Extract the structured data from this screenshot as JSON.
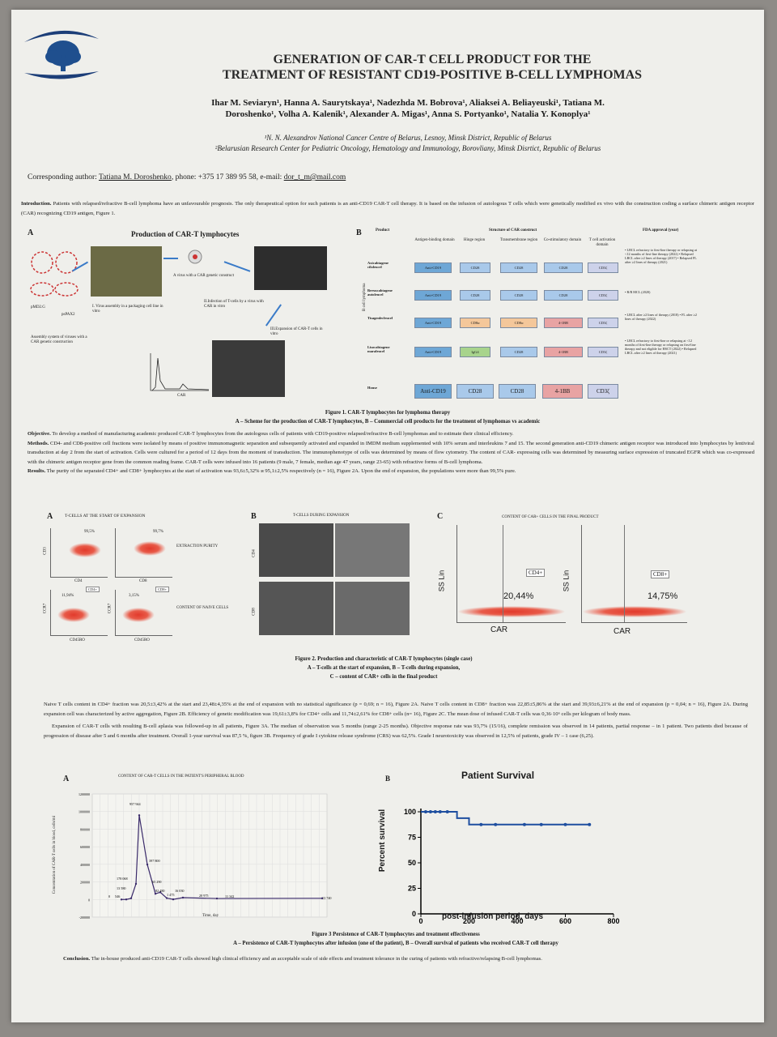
{
  "title_line1": "GENERATION OF CAR-T CELL PRODUCT FOR THE",
  "title_line2": "TREATMENT OF RESISTANT CD19-POSITIVE B-CELL LYMPHOMAS",
  "authors_line1": "Ihar M. Seviaryn¹, Hanna A. Saurytskaya¹, Nadezhda M. Bobrova¹, Aliaksei A. Beliayeuski¹, Tatiana M.",
  "authors_line2": "Doroshenko¹, Volha A. Kalenik¹, Alexander A. Migas¹, Anna S. Portyanko¹, Natalia Y. Konoplya¹",
  "affiliation1": "¹N. N. Alexandrov National Cancer Centre of Belarus, Lesnoy, Minsk District, Republic of Belarus",
  "affiliation2": "²Belarusian Research Center for Pediatric Oncology, Hematology and Immunology, Borovliany, Minsk Disrtict, Republic of Belarus",
  "corr_prefix": "Corresponding author:",
  "corr_name": "Tatiana M. Doroshenko",
  "corr_phone": ", phone: +375 17 389 95 58, e-mail:",
  "corr_email": "dor_t_m@mail.com",
  "intro_head": "Introduction.",
  "intro_text": "Patients with relapsed/refractive B-cell lymphoma have an unfavourable prognosis. The only therapeutical option for such patients is an anti-CD19 CAR-T cell therapy. It is based on the infusion of autologous T cells which were genetically modified ex vivo with the construction coding a surface chimeric antigen receptor (CAR) recognizing CD19 antigen, Figure 1.",
  "fig1": {
    "panel_a": "A",
    "panel_a_title": "Production of CAR-T lymphocytes",
    "panel_b": "B",
    "step1": "I. Virus assembly in a packaging cell line in vitro",
    "step2": "A virus with a CAR genetic construct",
    "step3": "II.Infection of T-cells by a virus with CAR in vitro",
    "step4": "III.Expansion of CAR-T cells in vitro",
    "step0": "Assembly system of viruses with a CAR genetic construction",
    "plasmid1": "pMD2.G",
    "plasmid2": "psPAX2",
    "hist_axis": "CAR",
    "b_header_product": "Product",
    "b_header_structure": "Structure of CAR construct",
    "b_header_fda": "FDA approval (year)",
    "b_cols": [
      "Antigen-binding domain",
      "Hinge region",
      "Transmembrane region",
      "Co-stimulatory domain",
      "T cell activation domain"
    ],
    "b_side_label": "B cell lymphoma",
    "products": [
      {
        "name": "Axicabtagene ciloleucel",
        "domains": [
          "Anti-CD19",
          "CD28",
          "CD28",
          "CD28",
          "CD3ζ"
        ],
        "fda": "• LBCL refractory to first-line therapy or relapsing at <12 months of first-line therapy (2022) • Relapsed LBCL after ≥2 lines of therapy (2017) • Relapsed FL after ≥2 lines of therapy (2021)"
      },
      {
        "name": "Brexucabtagene autoleucel",
        "domains": [
          "Anti-CD19",
          "CD28",
          "CD28",
          "CD28",
          "CD3ζ"
        ],
        "fda": "• R/R MCL (2020)"
      },
      {
        "name": "Tisagenlecleucel",
        "domains": [
          "Anti-CD19",
          "CD8α",
          "CD8α",
          "4-1BB",
          "CD3ζ"
        ],
        "fda": "• LBCL after ≥2 lines of therapy (2018) • FL after ≥2 lines of therapy (2022)"
      },
      {
        "name": "Lisocabtagene maraleucel",
        "domains": [
          "Anti-CD19",
          "IgG4",
          "CD28",
          "4-1BB",
          "CD3ζ"
        ],
        "fda": "• LBCL refractory to first-line or relapsing at <12 months of first-line therapy or relapsing on first-line therapy and not eligible for HSCT (2022) • Relapsed LBCL after ≥2 lines of therapy (2021)"
      },
      {
        "name": "House",
        "domains": [
          "Anti-CD19",
          "CD28",
          "CD28",
          "4-1BB",
          "CD3ζ"
        ],
        "fda": ""
      }
    ],
    "caption_title": "Figure 1. CAR-T lymphocytes for lymphoma therapy",
    "caption_sub": "A – Scheme for the production of CAR-T lymphocytes, B – Commercial cell products for the treatment of lymphomas vs academic"
  },
  "objective_head": "Objective.",
  "objective_text": "To develop a method of manufacturing academic produced CAR-T lymphocytes from the autologous cells of patients with CD19-positive relapsed/refractive B-cell lymphomas and to estimate their clinical efficiency.",
  "methods_head": "Methods.",
  "methods_text": "CD4- and CD8-positive cell fractions were isolated by means of positive immunomagnetic separation and subsequently activated and expanded in IMDM medium supplemented with 10% serum and interleukins 7 and 15. The second generation anti-CD19 chimeric antigen receptor was introduced into lymphocytes by lentiviral transduction at day 2 from the start of activation. Cells were cultured for a period of 12 days from the moment of transduction. The immunophenotype of cells was determined by means of flow cytometry. The content of CAR- expressing cells was determined by measuring surface expression of truncated EGFR which was co-expressed with the chimeric antigen receptor gene from the common reading frame. CAR-T cells were infused into 16 patients (9 male, 7 female, median age 47 years, range 23-65) with refractive forms of B-cell lymphoma.",
  "results_head": "Results.",
  "results_text": "The purity of the separated CD4+ and CD8+ lymphocytes at the start of activation was 93,6±5,32% и 95,1±2,5% respectively (n = 16), Figure 2A. Upon the end of expansion, the populations were more than 99,5% pure.",
  "fig2": {
    "a": "A",
    "a_title": "T-CELLS AT THE START OF EXPANSION",
    "b": "B",
    "b_title": "T-CELLS DURING EXPANSION",
    "c": "C",
    "c_title": "CONTENT OF CAR+ CELLS IN THE FINAL PRODUCT",
    "purity1": "99,5%",
    "purity2": "99,7%",
    "naive1": "11,94%",
    "naive2": "3,15%",
    "extraction_purity": "EXTRACTION PURITY",
    "content_naive": "CONTENT OF NAIVE CELLS",
    "cd3": "CD3",
    "cd4": "CD4",
    "cd8": "CD8",
    "ccr7": "CCR7",
    "cd45ro": "CD45RO",
    "gate_cd4": "CD4+",
    "gate_cd8": "CD8+",
    "ss_lin": "SS Lin",
    "car": "CAR",
    "car_cd4": "20,44%",
    "car_cd8": "14,75%",
    "caption1": "Figure 2. Production and characteristic of CAR-T lymphocytes (single case)",
    "caption2": "A – T-cells at the start of expansion, B – T-cells during expansion,",
    "caption3": "C – content of CAR+ cells in the final product"
  },
  "naive_text": "Naive T cells content in CD4+ fraction was 20,5±3,42% at the start and 23,48±4,35% at the end of expansion with no statistical significance (p = 0,69; n = 16), Figure 2A. Naive T cells content in CD8+ fraction was 22,85±5,86% at the start and 39,93±6,21% at the end of expansion (p = 0,04; n = 16), Figure 2A. During expansion cell was characterized by active aggregation, Figure 2B. Efficiency of genetic modification was 19,61±3,8% for CD4+ cells and 11,74±2,61% for CD8+ cells (n= 16), Figure 2C. The mean dose of infused CAR-T cells was 0,36·10⁶ cells per kilogram of body mass.",
  "expansion_text": "Expansion of CAR-T cells with resulting B-cell aplasia was followed-up in all patients, Figure 3A. The median of observation was 5 months (range 2-25 months). Objective response rate was 93,7% (15/16), complete remission was observed in 14 patients, partial response – in 1 patient. Two patients died because of progression of disease after 5 and 6 months after treatment. Overall 1-year survival was 87,5 %, figure 3B. Frequency of grade I cytokine release syndrome (CRS) was 62,5%. Grade I neurotoxicity was observed in 12,5% of patients, grade IV – 1 case (6,25).",
  "fig3": {
    "a": "A",
    "a_title": "CONTENT OF CAR-T CELLS IN THE PATIENT'S PERIPHERAL BLOOD",
    "a_ylabel": "Concentration of CAR-T cells in blood, cells/ml",
    "a_xlabel": "Time, day",
    "a_yticks": [
      "1200000",
      "1000000",
      "800000",
      "600000",
      "400000",
      "200000",
      "0",
      "-200000"
    ],
    "a_labels": [
      "957 944",
      "397 800",
      "178 068",
      "13 580",
      "0",
      "546",
      "65 290",
      "82 480",
      "16 030",
      "1 475",
      "20 975",
      "11 342",
      "13 740"
    ],
    "b": "B",
    "b_title": "Patient Survival",
    "b_ylabel": "Percent survival",
    "b_xlabel": "post-infusion period, days",
    "caption1": "Figure 3 Persistence of CAR-T lymphocytes and treatment effectiveness",
    "caption2": "A – Persistence of CAR-T lymphocytes after infusion (one of the patient), B – Overall survival of patients who received CAR-T cell therapy"
  },
  "chart_data": [
    {
      "type": "line",
      "title": "CONTENT OF CAR-T CELLS IN THE PATIENT'S PERIPHERAL BLOOD",
      "xlabel": "Time, day",
      "ylabel": "Concentration of CAR-T cells in blood, cells/ml",
      "ylim": [
        -200000,
        1200000
      ],
      "series": [
        {
          "values": [
            0,
            546,
            13580,
            178068,
            957944,
            397800,
            65290,
            82480,
            16030,
            1475,
            20975,
            11342,
            13740
          ]
        }
      ]
    },
    {
      "type": "line",
      "title": "Patient Survival",
      "xlabel": "post-infusion period, days",
      "ylabel": "Percent survival",
      "xlim": [
        0,
        800
      ],
      "ylim": [
        0,
        100
      ],
      "xticks": [
        0,
        200,
        400,
        600,
        800
      ],
      "yticks": [
        0,
        25,
        50,
        75,
        100
      ],
      "series": [
        {
          "x": [
            0,
            150,
            150,
            200,
            200,
            700
          ],
          "y": [
            100,
            100,
            93.75,
            93.75,
            87.5,
            87.5
          ]
        }
      ]
    }
  ],
  "conclusion_head": "Conclusion.",
  "conclusion_text": "The in-house produced anti-CD19 CAR-T cells showed high clinical efficiency and an acceptable scale of side effects and treatment tolerance in the curing of patients with refractive/relapsing B-cell lymphomas."
}
